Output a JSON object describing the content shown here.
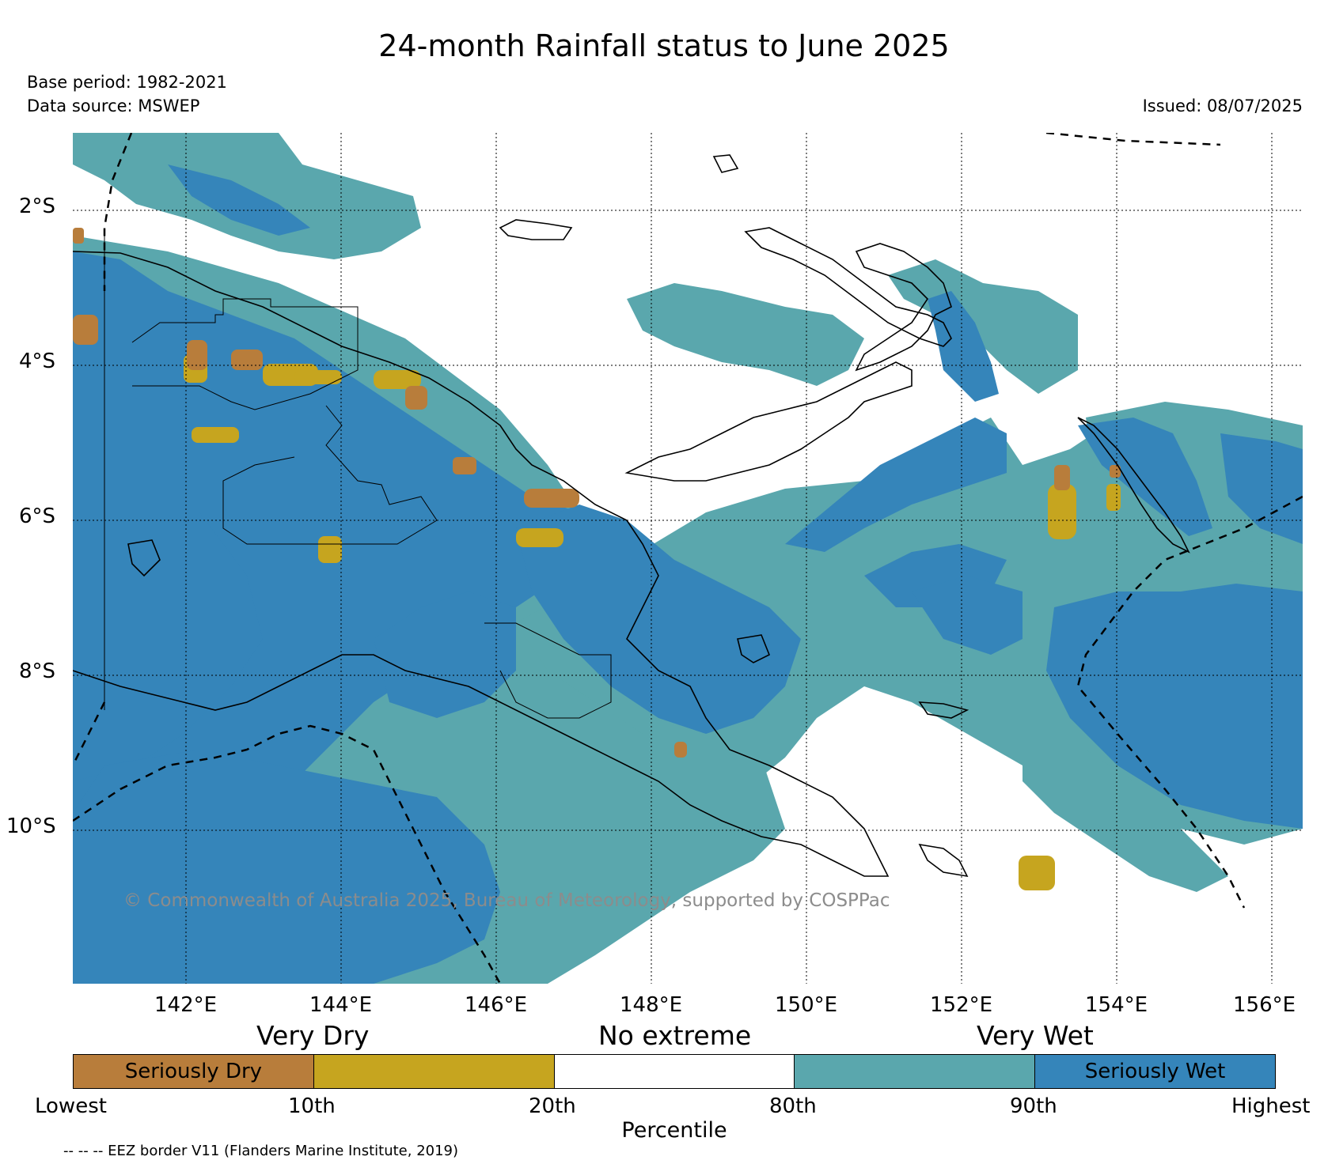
{
  "header": {
    "title": "24-month Rainfall status to June 2025",
    "base_period": "Base period: 1982-2021",
    "data_source": "Data source: MSWEP",
    "issued": "Issued: 08/07/2025"
  },
  "map": {
    "lat_labels": [
      "2°S",
      "4°S",
      "6°S",
      "8°S",
      "10°S"
    ],
    "lon_labels": [
      "142°E",
      "144°E",
      "146°E",
      "148°E",
      "150°E",
      "152°E",
      "154°E",
      "156°E"
    ],
    "copyright": "© Commonwealth of Australia 2025, Bureau of Meteorology, supported by COSPPac",
    "colors": {
      "seriously_dry": "#b87d3b",
      "very_dry": "#c6a51f",
      "no_extreme": "#ffffff",
      "very_wet": "#5aa7ad",
      "seriously_wet": "#3585ba"
    }
  },
  "legend": {
    "category_headers": [
      "Very Dry",
      "No extreme",
      "Very Wet"
    ],
    "segments": [
      {
        "label": "Seriously Dry",
        "color": "#b87d3b"
      },
      {
        "label": "",
        "color": "#c6a51f"
      },
      {
        "label": "",
        "color": "#ffffff"
      },
      {
        "label": "",
        "color": "#5aa7ad"
      },
      {
        "label": "Seriously Wet",
        "color": "#3585ba"
      }
    ],
    "tick_labels": [
      "Lowest",
      "10th",
      "20th",
      "80th",
      "90th",
      "Highest"
    ],
    "axis_label": "Percentile"
  },
  "footer": {
    "eez_note": "-- -- -- EEZ border V11 (Flanders Marine Institute, 2019)"
  }
}
